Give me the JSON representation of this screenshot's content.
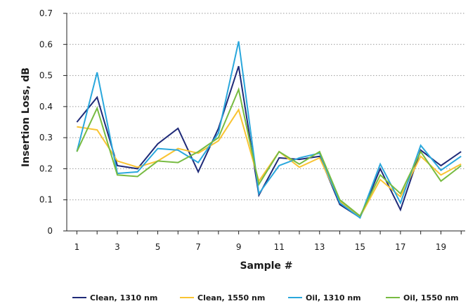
{
  "chart_data": {
    "type": "line",
    "title": "",
    "xlabel": "Sample #",
    "ylabel": "Insertion Loss, dB",
    "xlim": [
      0.5,
      20.2
    ],
    "ylim": [
      0,
      0.7
    ],
    "x_ticks": [
      1,
      3,
      5,
      7,
      9,
      11,
      13,
      15,
      17,
      19
    ],
    "y_ticks": [
      0,
      0.1,
      0.2,
      0.3,
      0.4,
      0.5,
      0.6,
      0.7
    ],
    "y_tick_labels": [
      "0",
      "0.1",
      "0.2",
      "0.3",
      "0.4",
      "0.5",
      "0.6",
      "0.7"
    ],
    "grid": "horizontal dotted",
    "legend_position": "bottom",
    "x": [
      1,
      2,
      3,
      4,
      5,
      6,
      7,
      8,
      9,
      10,
      11,
      12,
      13,
      14,
      15,
      16,
      17,
      18,
      19,
      20
    ],
    "series": [
      {
        "name": "Clean, 1310 nm",
        "color": "#1f2a78",
        "values": [
          0.35,
          0.43,
          0.21,
          0.2,
          0.28,
          0.33,
          0.19,
          0.33,
          0.53,
          0.115,
          0.235,
          0.23,
          0.24,
          0.085,
          0.043,
          0.2,
          0.068,
          0.26,
          0.21,
          0.255
        ]
      },
      {
        "name": "Clean, 1550 nm",
        "color": "#f9c433",
        "values": [
          0.335,
          0.325,
          0.225,
          0.205,
          0.225,
          0.265,
          0.25,
          0.29,
          0.39,
          0.16,
          0.255,
          0.205,
          0.235,
          0.095,
          0.045,
          0.165,
          0.11,
          0.24,
          0.18,
          0.215
        ]
      },
      {
        "name": "Oil, 1310 nm",
        "color": "#2aa7dc",
        "values": [
          0.255,
          0.51,
          0.185,
          0.19,
          0.265,
          0.26,
          0.22,
          0.315,
          0.61,
          0.12,
          0.21,
          0.235,
          0.25,
          0.09,
          0.042,
          0.215,
          0.09,
          0.275,
          0.195,
          0.24
        ]
      },
      {
        "name": "Oil, 1550 nm",
        "color": "#77bb41",
        "values": [
          0.255,
          0.395,
          0.18,
          0.175,
          0.225,
          0.22,
          0.255,
          0.3,
          0.455,
          0.15,
          0.255,
          0.215,
          0.255,
          0.1,
          0.048,
          0.18,
          0.12,
          0.255,
          0.16,
          0.21
        ]
      }
    ]
  }
}
